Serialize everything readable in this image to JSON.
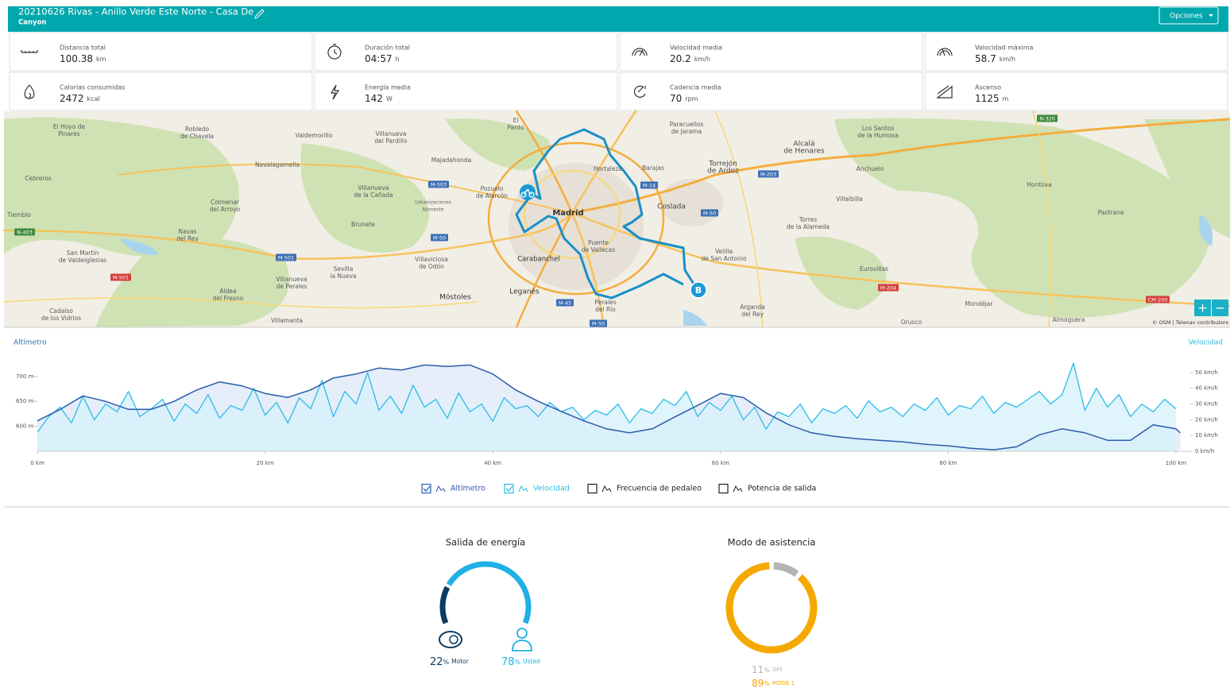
{
  "header": {
    "title": "20210626 Rivas - Anillo Verde Este Norte - Casa De",
    "subtitle": "Canyon",
    "button": "Opciones"
  },
  "stats": [
    {
      "label": "Distancia total",
      "value": 100.38,
      "unit": "km"
    },
    {
      "label": "Duración total",
      "value": "04:57",
      "unit": "h"
    },
    {
      "label": "Velocidad media",
      "value": 20.2,
      "unit": "km/h"
    },
    {
      "label": "Velocidad máxima",
      "value": 58.7,
      "unit": "km/h"
    },
    {
      "label": "Calorías consumidas",
      "value": 2472,
      "unit": "kcal"
    },
    {
      "label": "Energía media",
      "value": 142,
      "unit": "W"
    },
    {
      "label": "Cadencia media",
      "value": 70,
      "unit": "rpm"
    },
    {
      "label": "Ascenso",
      "value": 1125,
      "unit": "m"
    }
  ],
  "map": {
    "places": [
      {
        "lines": [
          "El Hoyo de",
          "Pinares"
        ]
      },
      {
        "lines": [
          "Robledo",
          "de Chavela"
        ]
      },
      {
        "lines": [
          "Valdemorillo"
        ]
      },
      {
        "lines": [
          "Villanueva",
          "del Pardillo"
        ]
      },
      {
        "lines": [
          "El",
          "Pardo"
        ]
      },
      {
        "lines": [
          "Paracuellos",
          "de Jarama"
        ]
      },
      {
        "lines": [
          "Alcalá",
          "de Henares"
        ]
      },
      {
        "lines": [
          "Los Santos",
          "de la Humosa"
        ]
      },
      {
        "lines": [
          "Navalagamella"
        ]
      },
      {
        "lines": [
          "Majadahonda"
        ]
      },
      {
        "lines": [
          "Hortaleza"
        ]
      },
      {
        "lines": [
          "Barajas"
        ]
      },
      {
        "lines": [
          "Torrejón",
          "de Ardoz"
        ]
      },
      {
        "lines": [
          "Anchuelo"
        ]
      },
      {
        "lines": [
          "Cebreros"
        ]
      },
      {
        "lines": [
          "Pozuelo",
          "de Alarcón"
        ]
      },
      {
        "lines": [
          "Villanueva",
          "de la Cañada"
        ]
      },
      {
        "lines": [
          "Colmenar",
          "del Arroyo"
        ]
      },
      {
        "lines": [
          "Madrid"
        ]
      },
      {
        "lines": [
          "Coslada"
        ]
      },
      {
        "lines": [
          "Villalbilla"
        ]
      },
      {
        "lines": [
          "Hontova"
        ]
      },
      {
        "lines": [
          "Pastrana"
        ]
      },
      {
        "lines": [
          "Tiemblo"
        ]
      },
      {
        "lines": [
          "Brunete"
        ]
      },
      {
        "lines": [
          "Torres",
          "de la Alameda"
        ]
      },
      {
        "lines": [
          "Navas",
          "del Rey"
        ]
      },
      {
        "lines": [
          "Puente",
          "de Vallecas"
        ]
      },
      {
        "lines": [
          "Carabanchel"
        ]
      },
      {
        "lines": [
          "Velilla",
          "de San Antonio"
        ]
      },
      {
        "lines": [
          "San Martín",
          "de Valdeiglesias"
        ]
      },
      {
        "lines": [
          "Villaviciosa",
          "de Odón"
        ]
      },
      {
        "lines": [
          "Sevilla",
          "la Nueva"
        ]
      },
      {
        "lines": [
          "Villanueva",
          "de Perales"
        ]
      },
      {
        "lines": [
          "Aldea",
          "del Fresno"
        ]
      },
      {
        "lines": [
          "Eurovillas"
        ]
      },
      {
        "lines": [
          "Móstoles"
        ]
      },
      {
        "lines": [
          "Leganés"
        ]
      },
      {
        "lines": [
          "Arganda",
          "del Rey"
        ]
      },
      {
        "lines": [
          "Cadalso",
          "de los Vidrios"
        ]
      },
      {
        "lines": [
          "Mondéjar"
        ]
      },
      {
        "lines": [
          "Villamanta"
        ]
      },
      {
        "lines": [
          "Orusco"
        ]
      },
      {
        "lines": [
          "Almoguera"
        ]
      },
      {
        "lines": [
          "Urbanizaciones",
          "Noroeste"
        ]
      },
      {
        "lines": [
          "Perales",
          "del Río"
        ]
      }
    ],
    "roads": [
      "N-320",
      "N-403",
      "M-501",
      "M-501",
      "M-503",
      "M-50",
      "M-50",
      "M-14",
      "M-203",
      "M-45",
      "M-204",
      "CM-200",
      "M-50"
    ],
    "marker": "B",
    "zoom": [
      "+",
      "−"
    ],
    "attribution": "© OSM | Telenav contributors"
  },
  "chart_data": {
    "type": "line",
    "y_label": "Altímetro",
    "y2_label": "Velocidad",
    "xlim": [
      0,
      101.2
    ],
    "xticks": [
      {
        "value": 0,
        "label": "0 km"
      },
      {
        "value": 20,
        "label": "20 km"
      },
      {
        "value": 40,
        "label": "40 km"
      },
      {
        "value": 60,
        "label": "60 km"
      },
      {
        "value": 80,
        "label": "80 km"
      },
      {
        "value": 100,
        "label": "100 km"
      }
    ],
    "ylim": [
      550,
      730
    ],
    "yticks": [
      {
        "value": 600,
        "label": "600 m"
      },
      {
        "value": 650,
        "label": "650 m"
      },
      {
        "value": 700,
        "label": "700 m"
      }
    ],
    "y2lim": [
      0,
      57
    ],
    "y2ticks": [
      {
        "value": 0,
        "label": "0 km/h"
      },
      {
        "value": 10,
        "label": "10 km/h"
      },
      {
        "value": 20,
        "label": "20 km/h"
      },
      {
        "value": 30,
        "label": "30 km/h"
      },
      {
        "value": 40,
        "label": "40 km/h"
      },
      {
        "value": 50,
        "label": "50 km/h"
      }
    ],
    "series": [
      {
        "name": "Altímetro",
        "color": "#2b5cab",
        "fill": "#dde8f7",
        "checked": true,
        "x": [
          0,
          2,
          4,
          6,
          8,
          10,
          12,
          14,
          16,
          18,
          20,
          22,
          24,
          26,
          28,
          30,
          32,
          34,
          36,
          38,
          40,
          42,
          44,
          46,
          48,
          50,
          52,
          54,
          56,
          58,
          60,
          62,
          64,
          66,
          68,
          70,
          72,
          74,
          76,
          78,
          80,
          82,
          84,
          86,
          88,
          90,
          92,
          94,
          96,
          98,
          100,
          100.38
        ],
        "values": [
          611,
          634,
          661,
          650,
          634,
          634,
          650,
          673,
          689,
          681,
          666,
          658,
          673,
          697,
          705,
          717,
          713,
          723,
          720,
          723,
          705,
          673,
          650,
          630,
          611,
          595,
          587,
          595,
          619,
          642,
          666,
          658,
          627,
          603,
          587,
          580,
          575,
          572,
          569,
          564,
          561,
          556,
          553,
          559,
          583,
          595,
          587,
          572,
          572,
          603,
          595,
          587
        ]
      },
      {
        "name": "Velocidad",
        "color": "#2bbbea",
        "fill": "#d6f0fa",
        "checked": true,
        "axis": "y2",
        "x": [
          0,
          1,
          2,
          3,
          4,
          5,
          6,
          7,
          8,
          9,
          10,
          11,
          12,
          13,
          14,
          15,
          16,
          17,
          18,
          19,
          20,
          21,
          22,
          23,
          24,
          25,
          26,
          27,
          28,
          29,
          30,
          31,
          32,
          33,
          34,
          35,
          36,
          37,
          38,
          39,
          40,
          41,
          42,
          43,
          44,
          45,
          46,
          47,
          48,
          49,
          50,
          51,
          52,
          53,
          54,
          55,
          56,
          57,
          58,
          59,
          60,
          61,
          62,
          63,
          64,
          65,
          66,
          67,
          68,
          69,
          70,
          71,
          72,
          73,
          74,
          75,
          76,
          77,
          78,
          79,
          80,
          81,
          82,
          83,
          84,
          85,
          86,
          87,
          88,
          89,
          90,
          91,
          92,
          93,
          94,
          95,
          96,
          97,
          98,
          99,
          100
        ],
        "values": [
          12,
          22,
          28,
          18,
          35,
          20,
          30,
          25,
          38,
          22,
          27,
          33,
          19,
          30,
          24,
          36,
          21,
          29,
          26,
          40,
          23,
          31,
          18,
          34,
          27,
          45,
          22,
          38,
          30,
          50,
          26,
          35,
          24,
          42,
          28,
          33,
          21,
          37,
          25,
          30,
          19,
          34,
          27,
          29,
          22,
          31,
          25,
          28,
          20,
          26,
          23,
          30,
          18,
          27,
          24,
          33,
          29,
          38,
          22,
          31,
          26,
          35,
          20,
          28,
          14,
          25,
          22,
          30,
          18,
          27,
          24,
          29,
          21,
          32,
          25,
          28,
          22,
          30,
          26,
          34,
          23,
          29,
          27,
          35,
          24,
          31,
          28,
          33,
          38,
          30,
          36,
          56,
          26,
          40,
          28,
          36,
          22,
          30,
          25,
          33,
          27
        ]
      }
    ],
    "extra_legend": [
      {
        "name": "Frecuencia de pedaleo",
        "checked": false
      },
      {
        "name": "Potencia de salida",
        "checked": false
      }
    ]
  },
  "energy": {
    "title": "Salida de energía",
    "unit": "%",
    "parts": [
      {
        "name": "Motor",
        "value": 22,
        "color": "#0c3b60"
      },
      {
        "name": "Usted",
        "value": 78,
        "color": "#1fb0e6"
      }
    ]
  },
  "assist": {
    "title": "Modo de asistencia",
    "unit": "%",
    "parts": [
      {
        "name": "OFF",
        "value": 11,
        "color": "#b4b4b4"
      },
      {
        "name": "MODE 1",
        "value": 89,
        "color": "#f5a900"
      }
    ]
  }
}
